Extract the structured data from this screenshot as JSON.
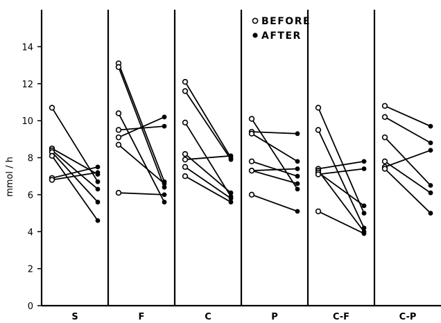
{
  "chart_data": {
    "type": "scatter",
    "ylabel": "mmol / h",
    "ylim": [
      0,
      16
    ],
    "yticks": [
      "0",
      "2",
      "4",
      "6",
      "8",
      "10",
      "12",
      "14"
    ],
    "legend": {
      "before_label": "BEFORE",
      "after_label": "AFTER",
      "placement": "top-center"
    },
    "colors": {
      "ink": "#000000",
      "background": "#ffffff"
    },
    "groups": [
      {
        "label": "S",
        "pairs": [
          [
            10.7,
            6.7
          ],
          [
            8.5,
            7.1
          ],
          [
            8.4,
            6.3
          ],
          [
            8.3,
            5.6
          ],
          [
            8.1,
            4.6
          ],
          [
            6.9,
            7.5
          ],
          [
            6.8,
            7.2
          ]
        ]
      },
      {
        "label": "F",
        "pairs": [
          [
            13.1,
            6.7
          ],
          [
            12.9,
            6.4
          ],
          [
            10.4,
            5.6
          ],
          [
            9.5,
            9.7
          ],
          [
            9.1,
            10.2
          ],
          [
            8.7,
            6.6
          ],
          [
            6.1,
            6.0
          ]
        ]
      },
      {
        "label": "C",
        "pairs": [
          [
            12.1,
            8.0
          ],
          [
            11.6,
            7.9
          ],
          [
            9.9,
            5.9
          ],
          [
            8.2,
            6.1
          ],
          [
            7.9,
            8.1
          ],
          [
            7.5,
            5.8
          ],
          [
            7.0,
            5.6
          ]
        ]
      },
      {
        "label": "P",
        "pairs": [
          [
            10.1,
            6.3
          ],
          [
            9.4,
            9.3
          ],
          [
            9.3,
            7.8
          ],
          [
            7.8,
            7.0
          ],
          [
            7.3,
            7.4
          ],
          [
            7.3,
            6.6
          ],
          [
            6.0,
            5.1
          ]
        ]
      },
      {
        "label": "C-F",
        "pairs": [
          [
            10.7,
            5.0
          ],
          [
            9.5,
            4.2
          ],
          [
            7.4,
            7.8
          ],
          [
            7.3,
            4.0
          ],
          [
            7.2,
            5.4
          ],
          [
            7.1,
            7.4
          ],
          [
            5.1,
            3.9
          ]
        ]
      },
      {
        "label": "C-P",
        "pairs": [
          [
            10.8,
            9.7
          ],
          [
            10.2,
            8.8
          ],
          [
            9.1,
            6.5
          ],
          [
            7.8,
            6.1
          ],
          [
            7.5,
            8.4
          ],
          [
            7.4,
            5.0
          ]
        ]
      }
    ]
  }
}
